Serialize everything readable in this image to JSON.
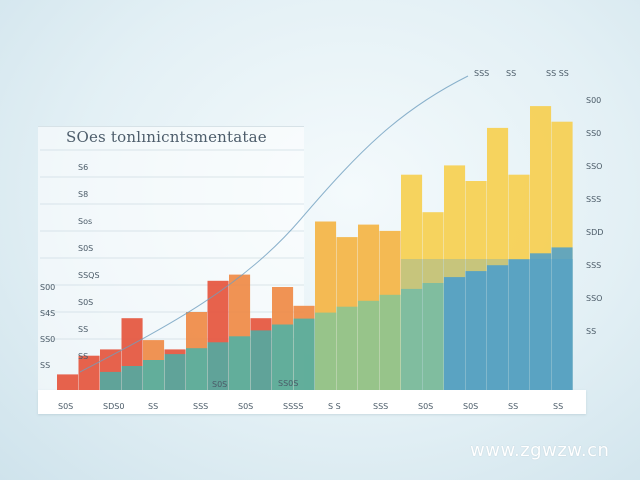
{
  "chart_data": {
    "type": "bar",
    "title": "SOes tonlınicntsmentatae",
    "subtitle": "",
    "xlabel": "",
    "ylabel": "",
    "ylim": [
      0,
      100
    ],
    "categories": [
      "",
      "",
      "",
      "",
      "",
      "",
      "",
      "",
      "",
      "",
      "",
      "",
      "",
      "",
      "",
      "",
      "",
      "",
      "",
      "",
      "",
      "",
      "",
      ""
    ],
    "values": [
      5,
      11,
      13,
      23,
      16,
      13,
      25,
      35,
      37,
      23,
      33,
      27,
      54,
      49,
      53,
      51,
      69,
      57,
      72,
      67,
      84,
      69,
      91,
      86
    ],
    "left_tick_labels": [
      "S6",
      "S8",
      "Sos",
      "S0S",
      "SSQS",
      "S0S",
      "SS",
      "SS"
    ],
    "outer_tick_labels": [
      "S00",
      "S4S",
      "SS0",
      "SS"
    ],
    "right_tick_labels": [
      "S00",
      "SS0",
      "SSO",
      "SSS",
      "SDD",
      "SSS",
      "SSO",
      "SS"
    ],
    "top_tick_labels": [
      "SSS",
      "SS",
      "SS SS"
    ],
    "x_tick_labels": [
      "S0S",
      "SDS0",
      "SS",
      "SSS",
      "S0S",
      "SSSS",
      "S S",
      "SSS",
      "S0S",
      "S0S",
      "SS",
      "SS"
    ],
    "inline_labels": [
      "S0S",
      "SS0S"
    ],
    "colors": {
      "red": "#e5553d",
      "orange": "#ef8a45",
      "amber": "#f4b444",
      "yellow": "#f6cf50",
      "green": "#7cc69a",
      "teal": "#3ab6b0",
      "blue": "#3c9ad6"
    },
    "grid": true,
    "legend": "none"
  },
  "watermark": "www.zgwzw.cn"
}
